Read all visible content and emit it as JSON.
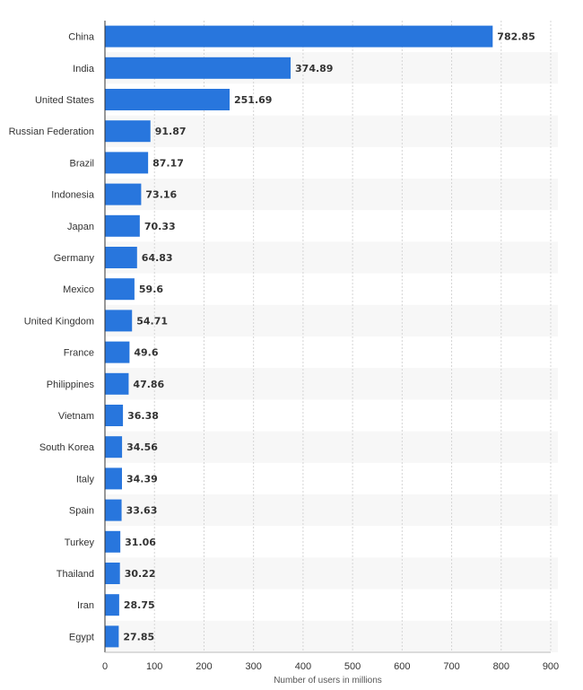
{
  "chart_data": {
    "type": "bar",
    "orientation": "horizontal",
    "categories": [
      "China",
      "India",
      "United States",
      "Russian Federation",
      "Brazil",
      "Indonesia",
      "Japan",
      "Germany",
      "Mexico",
      "United Kingdom",
      "France",
      "Philippines",
      "Vietnam",
      "South Korea",
      "Italy",
      "Spain",
      "Turkey",
      "Thailand",
      "Iran",
      "Egypt"
    ],
    "values": [
      782.85,
      374.89,
      251.69,
      91.87,
      87.17,
      73.16,
      70.33,
      64.83,
      59.6,
      54.71,
      49.6,
      47.86,
      36.38,
      34.56,
      34.39,
      33.63,
      31.06,
      30.22,
      28.75,
      27.85
    ],
    "value_labels": [
      "782.85",
      "374.89",
      "251.69",
      "91.87",
      "87.17",
      "73.16",
      "70.33",
      "64.83",
      "59.6",
      "54.71",
      "49.6",
      "47.86",
      "36.38",
      "34.56",
      "34.39",
      "33.63",
      "31.06",
      "30.22",
      "28.75",
      "27.85"
    ],
    "xticks": [
      0,
      100,
      200,
      300,
      400,
      500,
      600,
      700,
      800,
      900
    ],
    "xlim": [
      0,
      900
    ],
    "xlabel": "Number of users in millions",
    "ylabel": "",
    "title": "",
    "grid": "vertical dashed",
    "legend": "none",
    "colors": {
      "bar": "#2876dd",
      "band": "#f7f7f7",
      "grid": "#d4d4d4",
      "axis": "#333333"
    }
  }
}
